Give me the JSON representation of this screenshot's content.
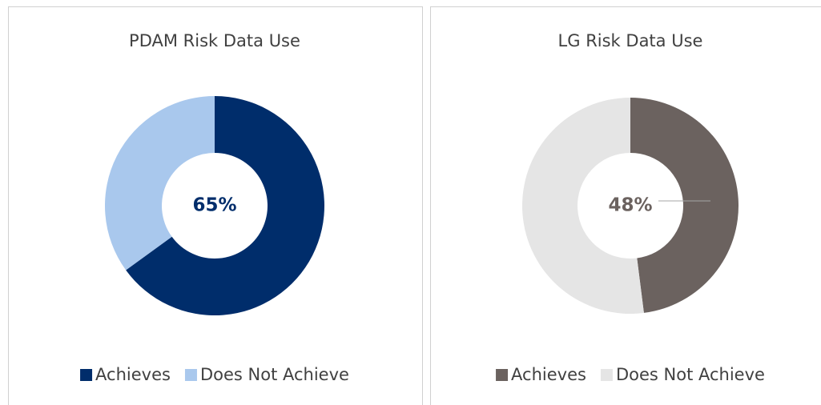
{
  "chart_data": [
    {
      "type": "donut",
      "title": "PDAM Risk Data Use",
      "categories": [
        "Achieves",
        "Does Not Achieve"
      ],
      "values": [
        65,
        35
      ],
      "value_labels": [
        "65%",
        null
      ],
      "colors": [
        "#002d6b",
        "#a9c8ed"
      ],
      "legend": "bottom"
    },
    {
      "type": "donut",
      "title": "LG Risk Data Use",
      "categories": [
        "Achieves",
        "Does Not Achieve"
      ],
      "values": [
        48,
        52
      ],
      "value_labels": [
        "48%",
        null
      ],
      "colors": [
        "#6b625f",
        "#e5e5e5"
      ],
      "legend": "bottom"
    }
  ]
}
